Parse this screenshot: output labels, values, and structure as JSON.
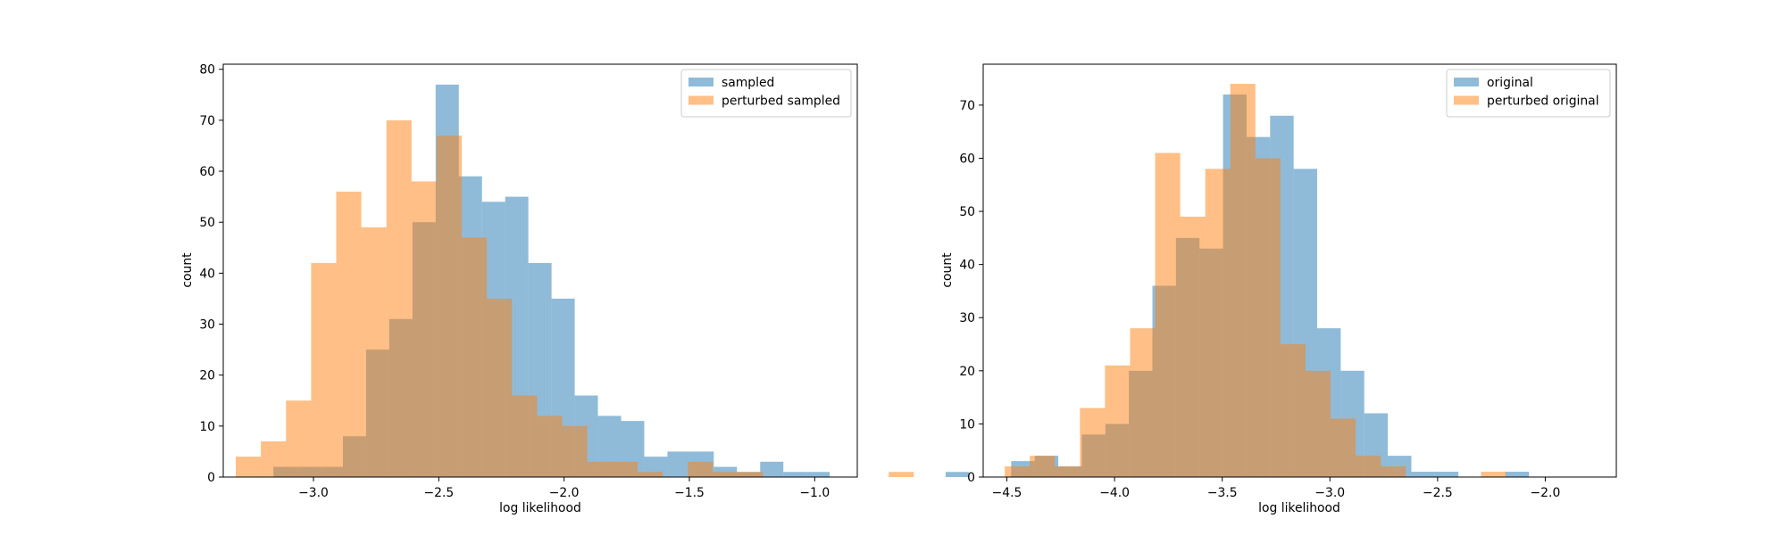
{
  "colors": {
    "blue": "#1f77b4",
    "orange": "#ff7f0e",
    "bar_alpha": 0.5
  },
  "chart_data": [
    {
      "type": "bar",
      "subtype": "overlaid-histogram",
      "title": "",
      "xlabel": "log likelihood",
      "ylabel": "count",
      "xlim": [
        -3.36,
        -0.83
      ],
      "ylim": [
        0,
        81
      ],
      "xticks": [
        -3.0,
        -2.5,
        -2.0,
        -1.5,
        -1.0
      ],
      "xtick_labels": [
        "−3.0",
        "−2.5",
        "−2.0",
        "−1.5",
        "−1.0"
      ],
      "yticks": [
        0,
        10,
        20,
        30,
        40,
        50,
        60,
        70,
        80
      ],
      "ytick_labels": [
        "0",
        "10",
        "20",
        "30",
        "40",
        "50",
        "60",
        "70",
        "80"
      ],
      "legend": "top-right",
      "grid": false,
      "series": [
        {
          "name": "sampled",
          "color": "#1f77b4",
          "bin_start": -3.16,
          "bin_width": 0.0925,
          "counts": [
            2,
            2,
            2,
            8,
            25,
            31,
            50,
            77,
            59,
            54,
            55,
            42,
            35,
            16,
            12,
            11,
            4,
            5,
            5,
            2,
            1,
            3,
            1,
            1,
            0,
            0,
            0,
            0,
            0,
            1
          ]
        },
        {
          "name": "perturbed sampled",
          "color": "#ff7f0e",
          "bin_start": -3.31,
          "bin_width": 0.1002,
          "counts": [
            4,
            7,
            15,
            42,
            56,
            49,
            70,
            58,
            67,
            47,
            35,
            16,
            12,
            10,
            3,
            3,
            1,
            0,
            3,
            1,
            1,
            0,
            0,
            0,
            0,
            0,
            1
          ]
        }
      ]
    },
    {
      "type": "bar",
      "subtype": "overlaid-histogram",
      "title": "",
      "xlabel": "log likelihood",
      "ylabel": "count",
      "xlim": [
        -4.61,
        -1.67
      ],
      "ylim": [
        0,
        77.7
      ],
      "xticks": [
        -4.5,
        -4.0,
        -3.5,
        -3.0,
        -2.5,
        -2.0
      ],
      "xtick_labels": [
        "−4.5",
        "−4.0",
        "−3.5",
        "−3.0",
        "−2.5",
        "−2.0"
      ],
      "yticks": [
        0,
        10,
        20,
        30,
        40,
        50,
        60,
        70
      ],
      "ytick_labels": [
        "0",
        "10",
        "20",
        "30",
        "40",
        "50",
        "60",
        "70"
      ],
      "legend": "top-right",
      "grid": false,
      "series": [
        {
          "name": "original",
          "color": "#1f77b4",
          "bin_start": -4.48,
          "bin_width": 0.1093,
          "counts": [
            3,
            4,
            2,
            8,
            10,
            20,
            36,
            45,
            43,
            72,
            64,
            68,
            58,
            28,
            20,
            12,
            4,
            1,
            1,
            0,
            0,
            1
          ]
        },
        {
          "name": "perturbed original",
          "color": "#ff7f0e",
          "bin_start": -4.51,
          "bin_width": 0.1164,
          "counts": [
            2,
            4,
            2,
            13,
            21,
            28,
            61,
            49,
            58,
            74,
            60,
            25,
            20,
            11,
            4,
            2,
            0,
            0,
            0,
            1
          ]
        }
      ]
    }
  ]
}
